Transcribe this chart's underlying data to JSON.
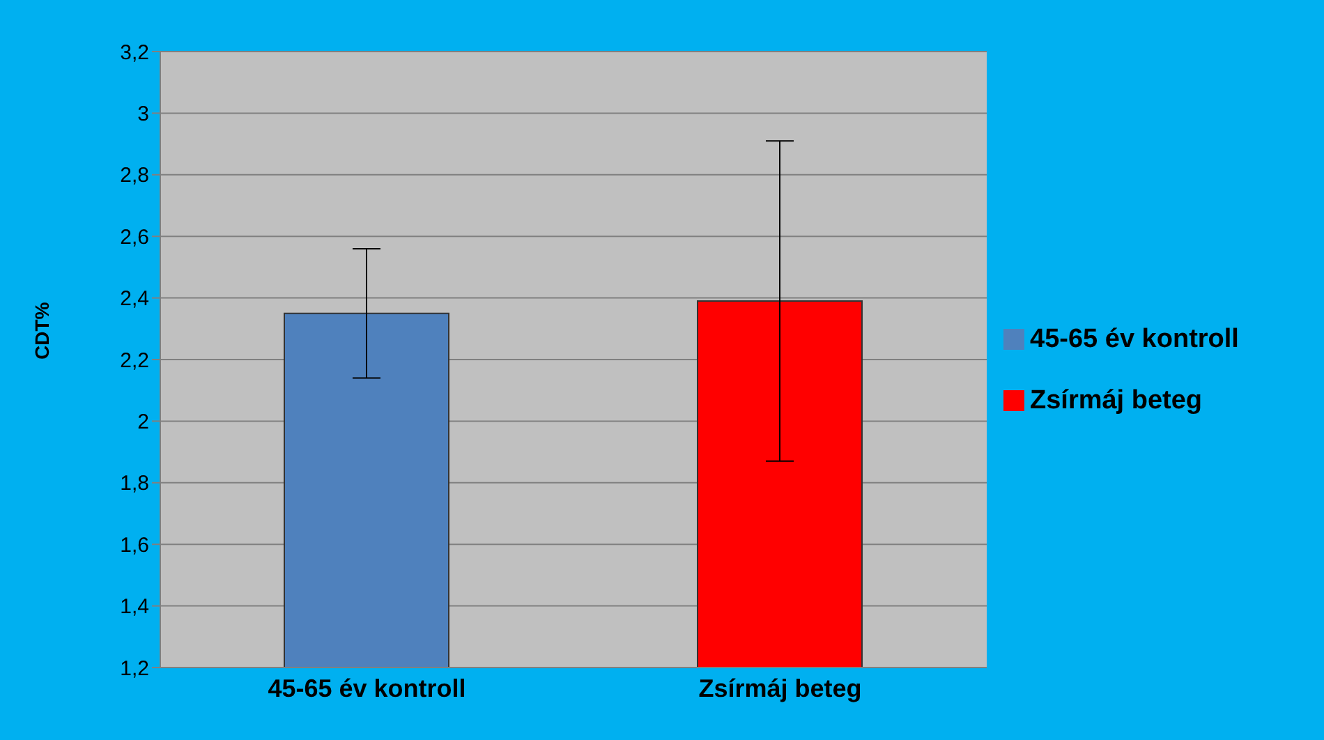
{
  "chart_data": {
    "type": "bar",
    "ylabel": "CDT%",
    "categories": [
      "45-65 év kontroll",
      "Zsírmáj beteg"
    ],
    "series": [
      {
        "name": "45-65 év kontroll",
        "color": "#4f81bd",
        "values": [
          2.35,
          null
        ],
        "errors": [
          [
            2.14,
            2.56
          ],
          null
        ]
      },
      {
        "name": "Zsírmáj beteg",
        "color": "#ff0000",
        "values": [
          null,
          2.39
        ],
        "errors": [
          null,
          [
            1.87,
            2.91
          ]
        ]
      }
    ],
    "ylim": [
      1.2,
      3.2
    ],
    "yticks": [
      {
        "value": 1.2,
        "label": "1,2"
      },
      {
        "value": 1.4,
        "label": "1,4"
      },
      {
        "value": 1.6,
        "label": "1,6"
      },
      {
        "value": 1.8,
        "label": "1,8"
      },
      {
        "value": 2,
        "label": "2"
      },
      {
        "value": 2.2,
        "label": "2,2"
      },
      {
        "value": 2.4,
        "label": "2,4"
      },
      {
        "value": 2.6,
        "label": "2,6"
      },
      {
        "value": 2.8,
        "label": "2,8"
      },
      {
        "value": 3,
        "label": "3"
      },
      {
        "value": 3.2,
        "label": "3,2"
      }
    ],
    "grid": "y",
    "legend": "right"
  }
}
